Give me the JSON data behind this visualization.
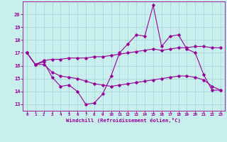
{
  "xlabel": "Windchill (Refroidissement éolien,°C)",
  "bg_color": "#c8eeee",
  "grid_color": "#a8d8d8",
  "line_color": "#990099",
  "x": [
    0,
    1,
    2,
    3,
    4,
    5,
    6,
    7,
    8,
    9,
    10,
    11,
    12,
    13,
    14,
    15,
    16,
    17,
    18,
    19,
    20,
    21,
    22,
    23
  ],
  "y_main": [
    17.0,
    16.1,
    16.3,
    15.1,
    14.4,
    14.5,
    14.0,
    13.0,
    13.1,
    13.8,
    15.2,
    17.0,
    17.7,
    18.4,
    18.3,
    20.7,
    17.5,
    18.3,
    18.4,
    17.3,
    17.0,
    15.3,
    14.1,
    14.1
  ],
  "y_upper": [
    17.0,
    16.1,
    16.4,
    16.5,
    16.5,
    16.6,
    16.6,
    16.6,
    16.7,
    16.7,
    16.8,
    16.9,
    17.0,
    17.1,
    17.2,
    17.3,
    17.2,
    17.3,
    17.4,
    17.4,
    17.5,
    17.5,
    17.4,
    17.4
  ],
  "y_lower": [
    17.0,
    16.1,
    16.1,
    15.5,
    15.2,
    15.1,
    15.0,
    14.8,
    14.6,
    14.5,
    14.4,
    14.5,
    14.6,
    14.7,
    14.8,
    14.9,
    15.0,
    15.1,
    15.2,
    15.2,
    15.1,
    14.9,
    14.4,
    14.1
  ],
  "ylim": [
    12.5,
    21.0
  ],
  "yticks": [
    13,
    14,
    15,
    16,
    17,
    18,
    19,
    20
  ],
  "xlim": [
    -0.5,
    23.5
  ],
  "xticks": [
    0,
    1,
    2,
    3,
    4,
    5,
    6,
    7,
    8,
    9,
    10,
    11,
    12,
    13,
    14,
    15,
    16,
    17,
    18,
    19,
    20,
    21,
    22,
    23
  ],
  "figsize": [
    3.2,
    2.0
  ],
  "dpi": 100
}
